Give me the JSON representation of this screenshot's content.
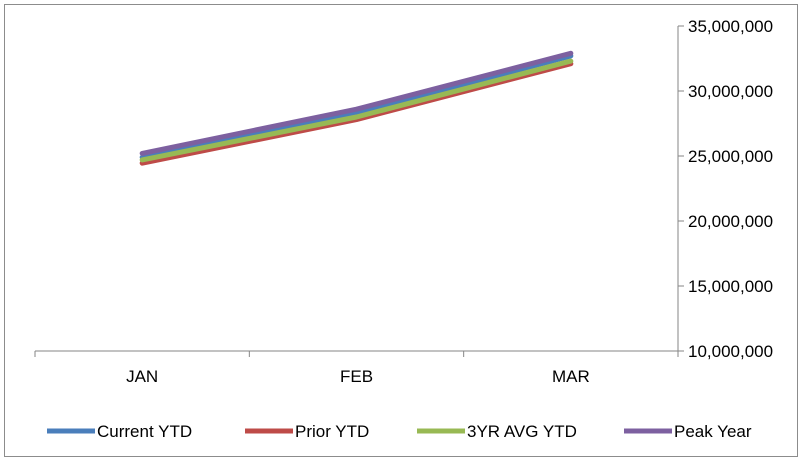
{
  "chart_data": {
    "type": "line",
    "categories": [
      "JAN",
      "FEB",
      "MAR"
    ],
    "series": [
      {
        "name": "Current YTD",
        "values": [
          24900000,
          28300000,
          32700000
        ],
        "color": "#4a7ebb"
      },
      {
        "name": "Prior YTD",
        "values": [
          24450000,
          27800000,
          32100000
        ],
        "color": "#be4b48"
      },
      {
        "name": "3YR AVG YTD",
        "values": [
          24700000,
          28000000,
          32300000
        ],
        "color": "#98b954"
      },
      {
        "name": "Peak Year",
        "values": [
          25200000,
          28600000,
          32900000
        ],
        "color": "#7d60a0"
      }
    ],
    "yaxis": {
      "position": "right",
      "ylim": [
        10000000,
        35000000
      ],
      "ticks": [
        10000000,
        15000000,
        20000000,
        25000000,
        30000000,
        35000000
      ],
      "tick_labels": [
        "10,000,000",
        "15,000,000",
        "20,000,000",
        "25,000,000",
        "30,000,000",
        "35,000,000"
      ]
    },
    "grid": false,
    "legend": "bottom"
  }
}
